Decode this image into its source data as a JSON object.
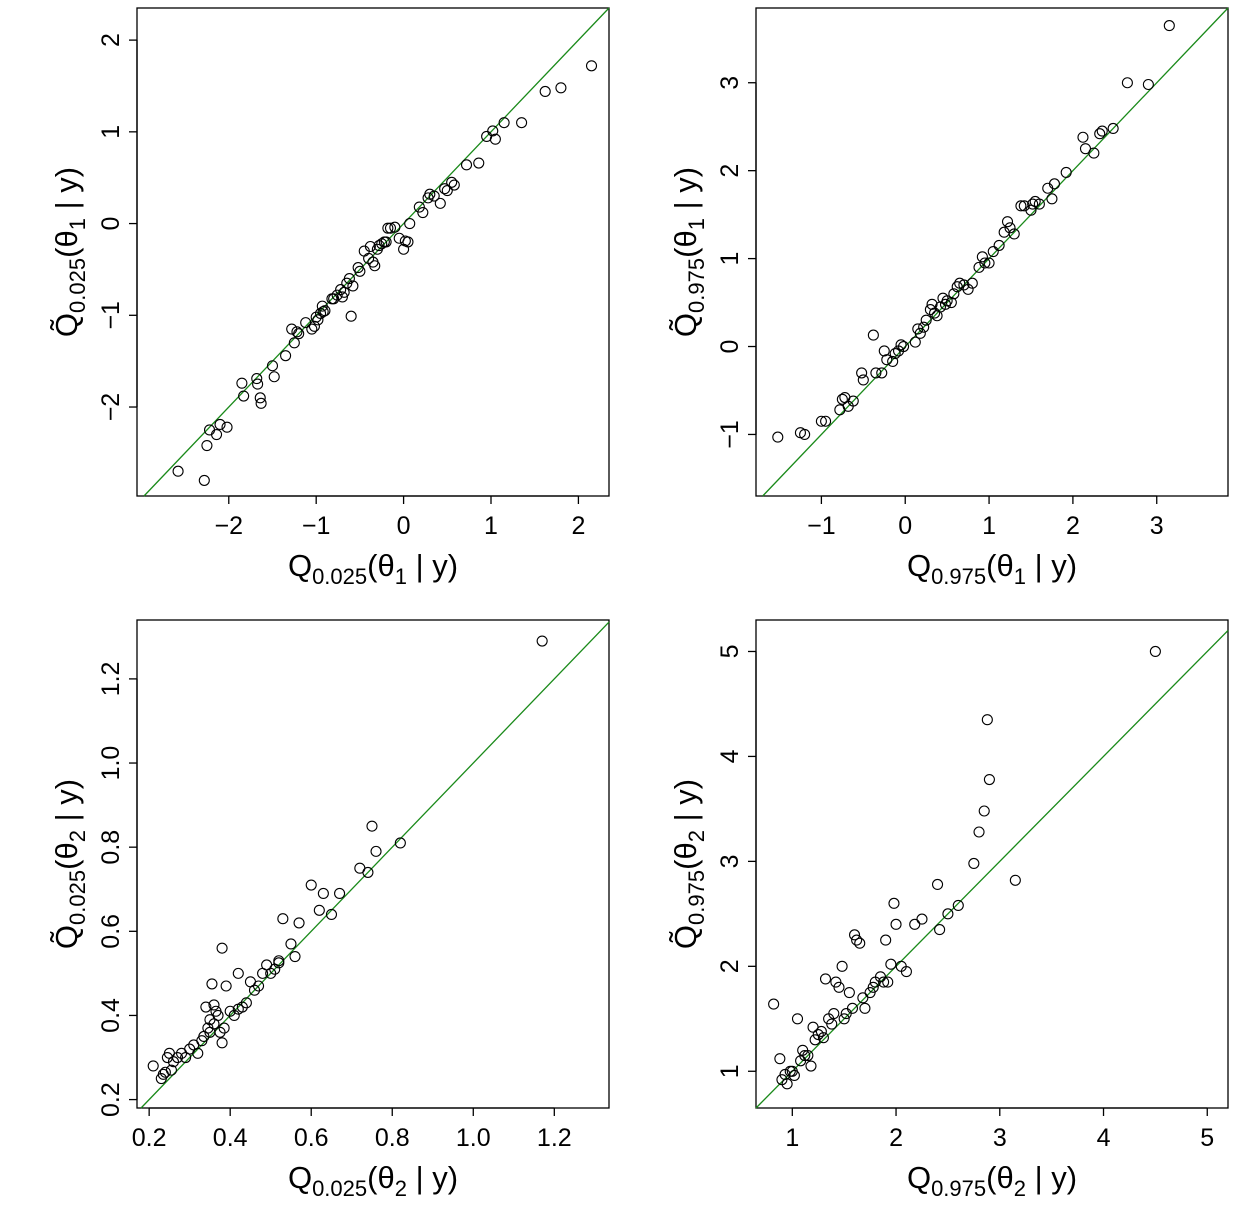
{
  "chart_data": [
    {
      "type": "scatter",
      "xlabel": {
        "main": "Q",
        "sub": "0.025",
        "rest": "(θ",
        "sub2": "1",
        "tail": " | y)"
      },
      "ylabel": {
        "main": "Q̃",
        "sub": "0.025",
        "rest": "(θ",
        "sub2": "1",
        "tail": " | y)"
      },
      "xlim": [
        -3.05,
        2.35
      ],
      "ylim": [
        -2.97,
        2.35
      ],
      "xticks": [
        -2,
        -1,
        0,
        1,
        2
      ],
      "yticks": [
        -2,
        -1,
        0,
        1,
        2
      ],
      "xtick_labels": [
        "−2",
        "−1",
        "0",
        "1",
        "2"
      ],
      "ytick_labels": [
        "−2",
        "−1",
        "0",
        "1",
        "2"
      ],
      "reference_line": "y = x",
      "reference_color": "#1a8a1a",
      "x": [
        -2.58,
        -2.28,
        -2.25,
        -2.22,
        -2.14,
        -2.1,
        -2.02,
        -1.85,
        -1.83,
        -1.68,
        -1.67,
        -1.64,
        -1.63,
        -1.5,
        -1.48,
        -1.35,
        -1.28,
        -1.25,
        -1.22,
        -1.2,
        -1.12,
        -1.05,
        -1.02,
        -1.0,
        -0.98,
        -0.95,
        -0.93,
        -0.92,
        -0.9,
        -0.82,
        -0.8,
        -0.76,
        -0.72,
        -0.7,
        -0.68,
        -0.65,
        -0.62,
        -0.6,
        -0.58,
        -0.52,
        -0.5,
        -0.45,
        -0.4,
        -0.38,
        -0.35,
        -0.33,
        -0.3,
        -0.28,
        -0.25,
        -0.22,
        -0.2,
        -0.18,
        -0.15,
        -0.1,
        -0.05,
        0.0,
        0.02,
        0.05,
        0.07,
        0.18,
        0.22,
        0.28,
        0.3,
        0.35,
        0.42,
        0.47,
        0.5,
        0.55,
        0.58,
        0.72,
        0.86,
        0.95,
        1.02,
        1.05,
        1.15,
        1.35,
        1.62,
        1.8,
        2.15
      ],
      "y": [
        -2.7,
        -2.8,
        -2.42,
        -2.25,
        -2.3,
        -2.19,
        -2.22,
        -1.74,
        -1.88,
        -1.69,
        -1.75,
        -1.9,
        -1.96,
        -1.55,
        -1.67,
        -1.44,
        -1.15,
        -1.3,
        -1.18,
        -1.2,
        -1.08,
        -1.15,
        -1.12,
        -1.02,
        -1.05,
        -0.98,
        -0.9,
        -0.96,
        -0.95,
        -0.82,
        -0.82,
        -0.78,
        -0.72,
        -0.8,
        -0.75,
        -0.65,
        -0.6,
        -1.01,
        -0.68,
        -0.48,
        -0.52,
        -0.3,
        -0.38,
        -0.25,
        -0.42,
        -0.46,
        -0.28,
        -0.24,
        -0.22,
        -0.2,
        -0.2,
        -0.05,
        -0.05,
        -0.04,
        -0.16,
        -0.28,
        -0.19,
        -0.2,
        0.0,
        0.18,
        0.12,
        0.28,
        0.32,
        0.3,
        0.22,
        0.38,
        0.36,
        0.45,
        0.42,
        0.64,
        0.66,
        0.95,
        1.01,
        0.92,
        1.1,
        1.1,
        1.44,
        1.48,
        1.72
      ]
    },
    {
      "type": "scatter",
      "xlabel": {
        "main": "Q",
        "sub": "0.975",
        "rest": "(θ",
        "sub2": "1",
        "tail": " | y)"
      },
      "ylabel": {
        "main": "Q̃",
        "sub": "0.975",
        "rest": "(θ",
        "sub2": "1",
        "tail": " | y)"
      },
      "xlim": [
        -1.78,
        3.85
      ],
      "ylim": [
        -1.7,
        3.85
      ],
      "xticks": [
        -1,
        0,
        1,
        2,
        3
      ],
      "yticks": [
        -1,
        0,
        1,
        2,
        3
      ],
      "xtick_labels": [
        "−1",
        "0",
        "1",
        "2",
        "3"
      ],
      "ytick_labels": [
        "−1",
        "0",
        "1",
        "2",
        "3"
      ],
      "reference_line": "y = x",
      "reference_color": "#1a8a1a",
      "x": [
        -1.52,
        -1.25,
        -1.2,
        -1.0,
        -0.95,
        -0.78,
        -0.75,
        -0.72,
        -0.68,
        -0.62,
        -0.52,
        -0.5,
        -0.38,
        -0.35,
        -0.28,
        -0.25,
        -0.22,
        -0.15,
        -0.12,
        -0.08,
        -0.05,
        -0.02,
        0.12,
        0.15,
        0.18,
        0.22,
        0.25,
        0.3,
        0.32,
        0.35,
        0.38,
        0.42,
        0.45,
        0.48,
        0.5,
        0.55,
        0.58,
        0.62,
        0.65,
        0.7,
        0.75,
        0.8,
        0.88,
        0.92,
        0.95,
        1.0,
        1.05,
        1.12,
        1.18,
        1.22,
        1.25,
        1.3,
        1.38,
        1.42,
        1.5,
        1.52,
        1.55,
        1.6,
        1.7,
        1.75,
        1.78,
        1.92,
        2.12,
        2.15,
        2.25,
        2.32,
        2.35,
        2.48,
        2.65,
        2.9,
        3.15
      ],
      "y": [
        -1.03,
        -0.98,
        -1.0,
        -0.85,
        -0.85,
        -0.72,
        -0.6,
        -0.58,
        -0.68,
        -0.62,
        -0.3,
        -0.38,
        0.13,
        -0.3,
        -0.3,
        -0.05,
        -0.15,
        -0.17,
        -0.08,
        -0.05,
        0.02,
        0.0,
        0.05,
        0.2,
        0.15,
        0.22,
        0.3,
        0.42,
        0.48,
        0.38,
        0.35,
        0.45,
        0.55,
        0.48,
        0.52,
        0.5,
        0.6,
        0.68,
        0.72,
        0.7,
        0.65,
        0.72,
        0.9,
        1.02,
        0.95,
        0.95,
        1.08,
        1.15,
        1.3,
        1.42,
        1.35,
        1.28,
        1.6,
        1.6,
        1.55,
        1.62,
        1.65,
        1.62,
        1.8,
        1.68,
        1.85,
        1.98,
        2.38,
        2.25,
        2.2,
        2.42,
        2.45,
        2.48,
        3.0,
        2.98,
        3.65
      ]
    },
    {
      "type": "scatter",
      "xlabel": {
        "main": "Q",
        "sub": "0.025",
        "rest": "(θ",
        "sub2": "2",
        "tail": " | y)"
      },
      "ylabel": {
        "main": "Q̃",
        "sub": "0.025",
        "rest": "(θ",
        "sub2": "2",
        "tail": " | y)"
      },
      "xlim": [
        0.17,
        1.335
      ],
      "ylim": [
        0.18,
        1.34
      ],
      "xticks": [
        0.2,
        0.4,
        0.6,
        0.8,
        1.0,
        1.2
      ],
      "yticks": [
        0.2,
        0.4,
        0.6,
        0.8,
        1.0,
        1.2
      ],
      "xtick_labels": [
        "0.2",
        "0.4",
        "0.6",
        "0.8",
        "1.0",
        "1.2"
      ],
      "ytick_labels": [
        "0.2",
        "0.4",
        "0.6",
        "0.8",
        "1.0",
        "1.2"
      ],
      "reference_line": "y = x",
      "reference_color": "#1a8a1a",
      "x": [
        0.21,
        0.23,
        0.235,
        0.24,
        0.245,
        0.25,
        0.255,
        0.26,
        0.27,
        0.28,
        0.29,
        0.3,
        0.31,
        0.32,
        0.33,
        0.335,
        0.34,
        0.345,
        0.35,
        0.355,
        0.36,
        0.365,
        0.37,
        0.375,
        0.38,
        0.385,
        0.39,
        0.4,
        0.41,
        0.42,
        0.43,
        0.44,
        0.45,
        0.46,
        0.47,
        0.48,
        0.49,
        0.5,
        0.51,
        0.52,
        0.53,
        0.55,
        0.56,
        0.57,
        0.6,
        0.62,
        0.63,
        0.65,
        0.67,
        0.72,
        0.74,
        0.75,
        0.76,
        0.82,
        1.17,
        0.36,
        0.38,
        0.42,
        0.35,
        0.52
      ],
      "y": [
        0.28,
        0.25,
        0.26,
        0.265,
        0.3,
        0.31,
        0.27,
        0.29,
        0.3,
        0.31,
        0.3,
        0.32,
        0.33,
        0.31,
        0.34,
        0.35,
        0.42,
        0.37,
        0.36,
        0.475,
        0.38,
        0.41,
        0.4,
        0.36,
        0.56,
        0.37,
        0.47,
        0.41,
        0.4,
        0.5,
        0.42,
        0.43,
        0.48,
        0.46,
        0.47,
        0.5,
        0.52,
        0.5,
        0.51,
        0.53,
        0.63,
        0.57,
        0.54,
        0.62,
        0.71,
        0.65,
        0.69,
        0.64,
        0.69,
        0.75,
        0.74,
        0.85,
        0.79,
        0.81,
        1.29,
        0.425,
        0.335,
        0.415,
        0.39,
        0.525
      ]
    },
    {
      "type": "scatter",
      "xlabel": {
        "main": "Q",
        "sub": "0.975",
        "rest": "(θ",
        "sub2": "2",
        "tail": " | y)"
      },
      "ylabel": {
        "main": "Q̃",
        "sub": "0.975",
        "rest": "(θ",
        "sub2": "2",
        "tail": " | y)"
      },
      "xlim": [
        0.65,
        5.2
      ],
      "ylim": [
        0.65,
        5.3
      ],
      "xticks": [
        1,
        2,
        3,
        4,
        5
      ],
      "yticks": [
        1,
        2,
        3,
        4,
        5
      ],
      "xtick_labels": [
        "1",
        "2",
        "3",
        "4",
        "5"
      ],
      "ytick_labels": [
        "1",
        "2",
        "3",
        "4",
        "5"
      ],
      "reference_line": "y = x",
      "reference_color": "#1a8a1a",
      "x": [
        0.82,
        0.88,
        0.9,
        0.93,
        0.95,
        0.98,
        1.0,
        1.02,
        1.05,
        1.08,
        1.1,
        1.12,
        1.15,
        1.18,
        1.2,
        1.22,
        1.25,
        1.28,
        1.3,
        1.32,
        1.35,
        1.38,
        1.4,
        1.42,
        1.45,
        1.48,
        1.5,
        1.52,
        1.55,
        1.58,
        1.6,
        1.62,
        1.65,
        1.68,
        1.7,
        1.75,
        1.78,
        1.8,
        1.85,
        1.88,
        1.9,
        1.92,
        1.95,
        1.98,
        2.0,
        2.05,
        2.1,
        2.18,
        2.25,
        2.4,
        2.42,
        2.5,
        2.6,
        2.75,
        2.8,
        2.85,
        2.88,
        2.9,
        3.15,
        4.5
      ],
      "y": [
        1.64,
        1.12,
        0.92,
        0.97,
        0.88,
        1.0,
        1.0,
        0.96,
        1.5,
        1.1,
        1.2,
        1.15,
        1.15,
        1.05,
        1.42,
        1.3,
        1.35,
        1.38,
        1.32,
        1.88,
        1.5,
        1.45,
        1.55,
        1.85,
        1.8,
        2.0,
        1.5,
        1.55,
        1.75,
        1.6,
        2.3,
        2.25,
        2.22,
        1.7,
        1.6,
        1.75,
        1.8,
        1.85,
        1.9,
        1.85,
        2.25,
        1.85,
        2.02,
        2.6,
        2.4,
        2.0,
        1.95,
        2.4,
        2.45,
        2.78,
        2.35,
        2.5,
        2.58,
        2.98,
        3.28,
        3.48,
        4.35,
        3.78,
        2.82,
        5.0
      ]
    }
  ]
}
